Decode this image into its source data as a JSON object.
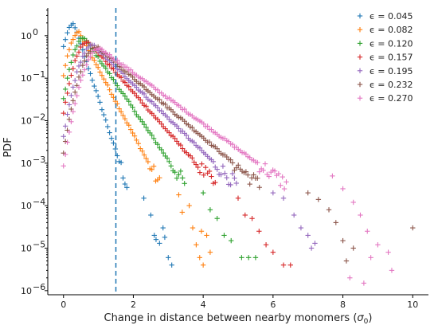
{
  "chart_data": {
    "type": "scatter",
    "title": "",
    "xlabel_main": "Change in distance between nearby monomers (",
    "xlabel_sym": "σ",
    "xlabel_sub": "0",
    "xlabel_end": ")",
    "ylabel": "PDF",
    "xlim": [
      -0.45,
      10.45
    ],
    "ylim": [
      8e-07,
      4.5
    ],
    "yscale": "log",
    "xticks": [
      0,
      2,
      4,
      6,
      8,
      10
    ],
    "yticks": [
      1e-06,
      1e-05,
      0.0001,
      0.001,
      0.01,
      0.1,
      1
    ],
    "xtick_labels": [
      "0",
      "2",
      "4",
      "6",
      "8",
      "10"
    ],
    "ytick_labels": [
      "10",
      "10",
      "10",
      "10",
      "10",
      "10",
      "10"
    ],
    "ytick_exponents": [
      "−6",
      "−5",
      "−4",
      "−3",
      "−2",
      "−1",
      "0"
    ],
    "marker": "+",
    "vline": {
      "x": 1.5,
      "style": "dashed",
      "color": "#1f77b4"
    },
    "legend_placement": "upper-right",
    "series": [
      {
        "name": "ϵ = 0.045",
        "color": "#1f77b4",
        "peak_x": 0.3,
        "peak_y": 1.9,
        "tail_slope": 2.5,
        "rise": 6,
        "x_end": 3.1
      },
      {
        "name": "ϵ = 0.082",
        "color": "#ff7f0e",
        "peak_x": 0.45,
        "peak_y": 1.2,
        "tail_slope": 1.55,
        "rise": 5,
        "x_end": 4.6
      },
      {
        "name": "ϵ = 0.120",
        "color": "#2ca02c",
        "peak_x": 0.6,
        "peak_y": 0.9,
        "tail_slope": 1.2,
        "rise": 4,
        "x_end": 5.5
      },
      {
        "name": "ϵ = 0.157",
        "color": "#d62728",
        "peak_x": 0.7,
        "peak_y": 0.75,
        "tail_slope": 0.93,
        "rise": 3.5,
        "x_end": 6.5
      },
      {
        "name": "ϵ = 0.195",
        "color": "#9467bd",
        "peak_x": 0.85,
        "peak_y": 0.6,
        "tail_slope": 0.8,
        "rise": 3,
        "x_end": 7.2
      },
      {
        "name": "ϵ = 0.232",
        "color": "#8c564b",
        "peak_x": 0.95,
        "peak_y": 0.55,
        "tail_slope": 0.7,
        "rise": 2.8,
        "x_end": 8.3
      },
      {
        "name": "ϵ = 0.270",
        "color": "#e377c2",
        "peak_x": 1.05,
        "peak_y": 0.5,
        "tail_slope": 0.6,
        "rise": 2.5,
        "x_end": 9.0
      }
    ],
    "scattered_tail_points": {
      "ϵ = 0.045": [
        [
          2.3,
          0.00015
        ],
        [
          2.5,
          6e-05
        ],
        [
          2.6,
          2e-05
        ],
        [
          2.75,
          1.3e-05
        ],
        [
          2.9,
          1.8e-05
        ],
        [
          3.0,
          6e-06
        ],
        [
          3.1,
          4e-06
        ],
        [
          2.65,
          1.6e-05
        ],
        [
          2.85,
          3e-05
        ]
      ],
      "ϵ = 0.082": [
        [
          3.3,
          0.00018
        ],
        [
          3.4,
          7e-05
        ],
        [
          3.6,
          0.0001
        ],
        [
          3.7,
          3e-05
        ],
        [
          3.8,
          1.2e-05
        ],
        [
          3.9,
          6e-06
        ],
        [
          4.0,
          4e-06
        ],
        [
          4.1,
          2e-05
        ],
        [
          4.2,
          8e-06
        ],
        [
          3.95,
          2.5e-05
        ]
      ],
      "ϵ = 0.120": [
        [
          4.0,
          0.0002
        ],
        [
          4.2,
          8e-05
        ],
        [
          4.4,
          5e-05
        ],
        [
          4.6,
          2e-05
        ],
        [
          4.8,
          1.5e-05
        ],
        [
          5.1,
          6e-06
        ],
        [
          5.3,
          6e-06
        ],
        [
          5.5,
          6e-06
        ]
      ],
      "ϵ = 0.157": [
        [
          5.0,
          0.00015
        ],
        [
          5.2,
          6e-05
        ],
        [
          5.4,
          5e-05
        ],
        [
          5.6,
          2.5e-05
        ],
        [
          5.8,
          1.2e-05
        ],
        [
          6.0,
          8e-06
        ],
        [
          6.3,
          4e-06
        ],
        [
          6.5,
          4e-06
        ]
      ],
      "ϵ = 0.195": [
        [
          6.0,
          0.0002
        ],
        [
          6.3,
          0.00015
        ],
        [
          6.6,
          6e-05
        ],
        [
          6.8,
          3e-05
        ],
        [
          7.0,
          2e-05
        ],
        [
          7.2,
          1.3e-05
        ],
        [
          7.1,
          1e-05
        ]
      ],
      "ϵ = 0.232": [
        [
          7.0,
          0.0002
        ],
        [
          7.3,
          0.00014
        ],
        [
          7.6,
          8e-05
        ],
        [
          7.8,
          4e-05
        ],
        [
          8.0,
          1.5e-05
        ],
        [
          8.3,
          1e-05
        ],
        [
          8.1,
          5e-06
        ],
        [
          10.0,
          3e-05
        ]
      ],
      "ϵ = 0.270": [
        [
          7.7,
          0.0005
        ],
        [
          8.0,
          0.00025
        ],
        [
          8.3,
          0.00012
        ],
        [
          8.5,
          6e-05
        ],
        [
          8.7,
          2.5e-05
        ],
        [
          9.0,
          1.2e-05
        ],
        [
          9.3,
          8e-06
        ],
        [
          8.8,
          6e-06
        ],
        [
          8.2,
          2e-06
        ],
        [
          8.6,
          1.5e-06
        ],
        [
          9.4,
          3e-06
        ]
      ]
    }
  }
}
